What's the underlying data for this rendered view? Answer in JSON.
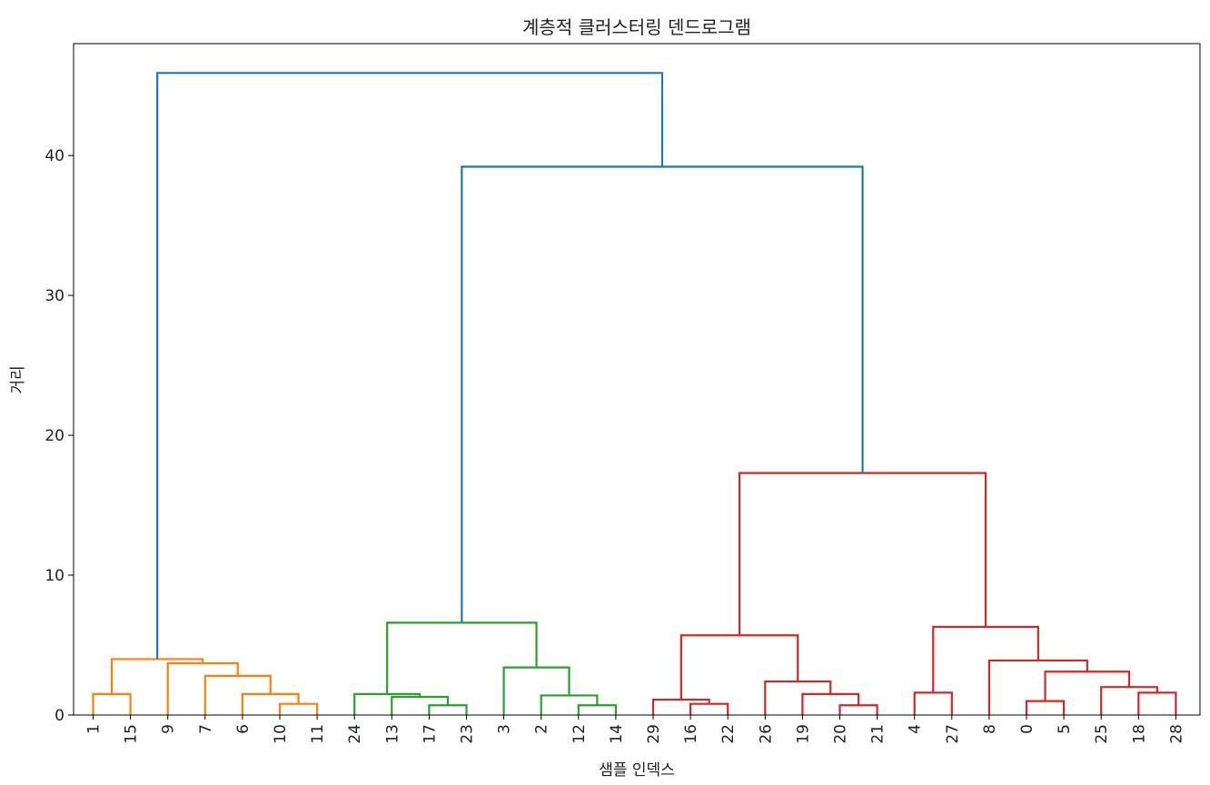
{
  "chart_data": {
    "type": "dendrogram",
    "title": "계층적 클러스터링 덴드로그램",
    "xlabel": "샘플 인덱스",
    "ylabel": "거리",
    "ylim": [
      0,
      48
    ],
    "yticks": [
      0,
      10,
      20,
      30,
      40
    ],
    "grid": false,
    "legend": "none",
    "colors": {
      "orange": "#ff7f0e",
      "green": "#2ca02c",
      "red": "#d62728",
      "blue": "#1f77b4"
    },
    "leaves": [
      "1",
      "15",
      "9",
      "7",
      "6",
      "10",
      "11",
      "24",
      "13",
      "17",
      "23",
      "3",
      "2",
      "12",
      "14",
      "29",
      "16",
      "22",
      "26",
      "19",
      "20",
      "21",
      "4",
      "27",
      "8",
      "0",
      "5",
      "25",
      "18",
      "28"
    ],
    "merges": [
      {
        "left": "L:1",
        "right": "L:15",
        "height": 1.5,
        "color": "orange"
      },
      {
        "left": "L:10",
        "right": "L:11",
        "height": 0.8,
        "color": "orange"
      },
      {
        "left": "L:6",
        "right": "M:1",
        "height": 1.5,
        "color": "orange"
      },
      {
        "left": "L:7",
        "right": "M:2",
        "height": 2.8,
        "color": "orange"
      },
      {
        "left": "L:9",
        "right": "M:3",
        "height": 3.7,
        "color": "orange"
      },
      {
        "left": "M:0",
        "right": "M:4",
        "height": 4.0,
        "color": "orange"
      },
      {
        "left": "L:17",
        "right": "L:23",
        "height": 0.7,
        "color": "green"
      },
      {
        "left": "L:13",
        "right": "M:6",
        "height": 1.3,
        "color": "green"
      },
      {
        "left": "L:24",
        "right": "M:7",
        "height": 1.5,
        "color": "green"
      },
      {
        "left": "L:12",
        "right": "L:14",
        "height": 0.7,
        "color": "green"
      },
      {
        "left": "L:2",
        "right": "M:9",
        "height": 1.4,
        "color": "green"
      },
      {
        "left": "L:3",
        "right": "M:10",
        "height": 3.4,
        "color": "green"
      },
      {
        "left": "M:8",
        "right": "M:11",
        "height": 6.6,
        "color": "green"
      },
      {
        "left": "L:16",
        "right": "L:22",
        "height": 0.8,
        "color": "red"
      },
      {
        "left": "L:29",
        "right": "M:13",
        "height": 1.1,
        "color": "red"
      },
      {
        "left": "L:20",
        "right": "L:21",
        "height": 0.7,
        "color": "red"
      },
      {
        "left": "L:19",
        "right": "M:15",
        "height": 1.5,
        "color": "red"
      },
      {
        "left": "L:26",
        "right": "M:16",
        "height": 2.4,
        "color": "red"
      },
      {
        "left": "M:14",
        "right": "M:17",
        "height": 5.7,
        "color": "red"
      },
      {
        "left": "L:4",
        "right": "L:27",
        "height": 1.6,
        "color": "red"
      },
      {
        "left": "L:0",
        "right": "L:5",
        "height": 1.0,
        "color": "red"
      },
      {
        "left": "L:18",
        "right": "L:28",
        "height": 1.6,
        "color": "red"
      },
      {
        "left": "L:25",
        "right": "M:21",
        "height": 2.0,
        "color": "red"
      },
      {
        "left": "M:20",
        "right": "M:22",
        "height": 3.1,
        "color": "red"
      },
      {
        "left": "L:8",
        "right": "M:23",
        "height": 3.9,
        "color": "red"
      },
      {
        "left": "M:19",
        "right": "M:24",
        "height": 6.3,
        "color": "red"
      },
      {
        "left": "M:18",
        "right": "M:25",
        "height": 17.3,
        "color": "red"
      },
      {
        "left": "M:12",
        "right": "M:26",
        "height": 39.2,
        "color": "blue"
      },
      {
        "left": "M:5",
        "right": "M:27",
        "height": 45.9,
        "color": "blue"
      }
    ]
  }
}
